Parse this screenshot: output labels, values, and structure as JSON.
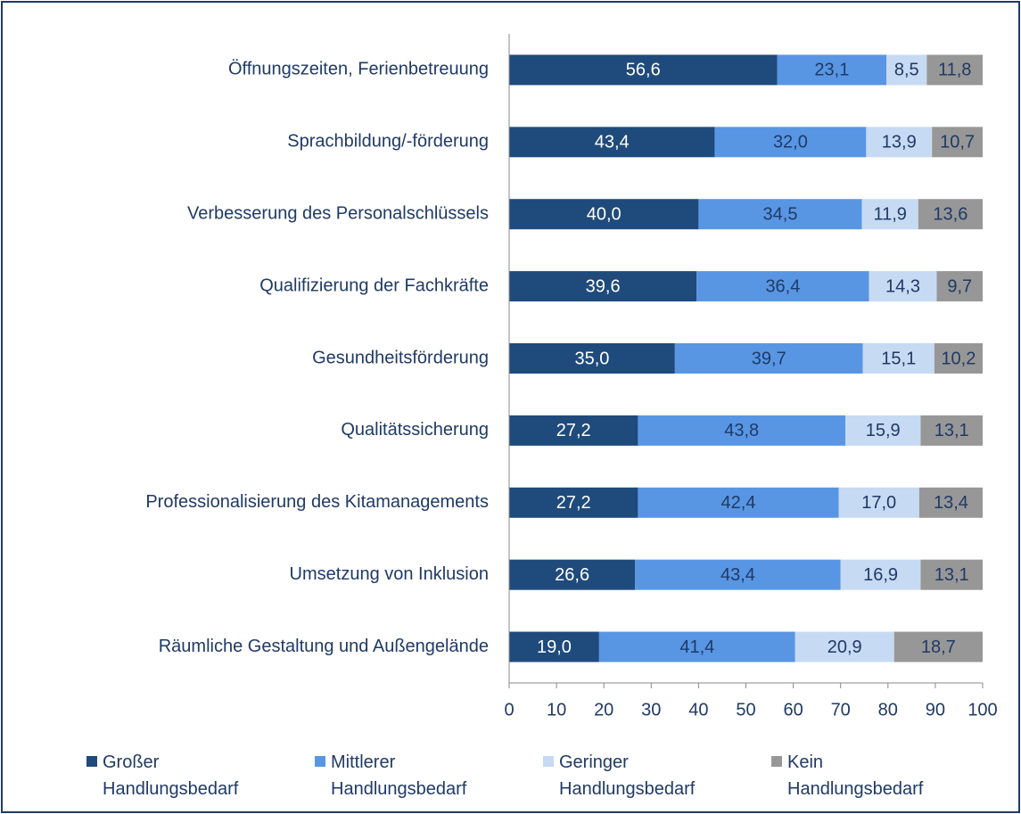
{
  "chart_data": {
    "type": "stacked_barh",
    "categories": [
      "Öffnungszeiten, Ferienbetreuung",
      "Sprachbildung/-förderung",
      "Verbesserung des Personalschlüssels",
      "Qualifizierung der Fachkräfte",
      "Gesundheitsförderung",
      "Qualitätssicherung",
      "Professionalisierung des Kitamanagements",
      "Umsetzung von Inklusion",
      "Räumliche Gestaltung und Außengelände"
    ],
    "series": [
      {
        "name": "Großer Handlungsbedarf",
        "color": "#1f4a7c",
        "label_color": "#ffffff",
        "values": [
          56.6,
          43.4,
          40.0,
          39.6,
          35.0,
          27.2,
          27.2,
          26.6,
          19.0
        ],
        "value_labels": [
          "56,6",
          "43,4",
          "40,0",
          "39,6",
          "35,0",
          "27,2",
          "27,2",
          "26,6",
          "19,0"
        ]
      },
      {
        "name": "Mittlerer Handlungsbedarf",
        "color": "#5896e4",
        "label_color": "#1f3a66",
        "values": [
          23.1,
          32.0,
          34.5,
          36.4,
          39.7,
          43.8,
          42.4,
          43.4,
          41.4
        ],
        "value_labels": [
          "23,1",
          "32,0",
          "34,5",
          "36,4",
          "39,7",
          "43,8",
          "42,4",
          "43,4",
          "41,4"
        ]
      },
      {
        "name": "Geringer Handlungsbedarf",
        "color": "#c7daf3",
        "label_color": "#1f3a66",
        "values": [
          8.5,
          13.9,
          11.9,
          14.3,
          15.1,
          15.9,
          17.0,
          16.9,
          20.9
        ],
        "value_labels": [
          "8,5",
          "13,9",
          "11,9",
          "14,3",
          "15,1",
          "15,9",
          "17,0",
          "16,9",
          "20,9"
        ]
      },
      {
        "name": "Kein Handlungsbedarf",
        "color": "#979797",
        "label_color": "#1f3a66",
        "values": [
          11.8,
          10.7,
          13.6,
          9.7,
          10.2,
          13.1,
          13.4,
          13.1,
          18.7
        ],
        "value_labels": [
          "11,8",
          "10,7",
          "13,6",
          "9,7",
          "10,2",
          "13,1",
          "13,4",
          "13,1",
          "18,7"
        ]
      }
    ],
    "xlim": [
      0,
      100
    ],
    "xticks": [
      0,
      10,
      20,
      30,
      40,
      50,
      60,
      70,
      80,
      90,
      100
    ],
    "legend": "bottom"
  }
}
